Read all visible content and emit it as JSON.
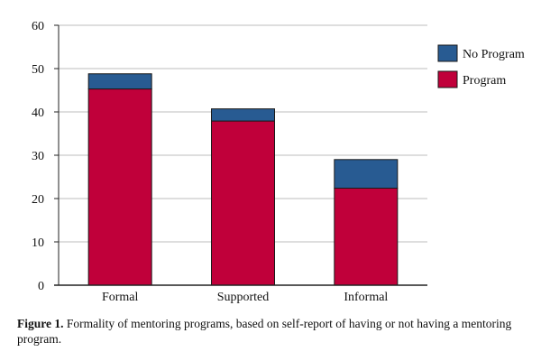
{
  "caption": {
    "figure_label": "Figure 1.",
    "text": "Formality of mentoring programs, based on self-report of having or not having a mentoring program."
  },
  "colors": {
    "program": "#c0003a",
    "no_program": "#285b92",
    "grid": "#bdbdbd",
    "axis": "#222222"
  },
  "chart_data": {
    "type": "bar",
    "stacked": true,
    "title": "",
    "xlabel": "",
    "ylabel": "",
    "categories": [
      "Formal",
      "Supported",
      "Informal"
    ],
    "series": [
      {
        "name": "Program",
        "values": [
          45.3,
          37.9,
          22.4
        ]
      },
      {
        "name": "No Program",
        "values": [
          3.5,
          2.8,
          6.6
        ]
      }
    ],
    "ylim": [
      0,
      60
    ],
    "yticks": [
      0,
      10,
      20,
      30,
      40,
      50,
      60
    ],
    "grid": true,
    "legend_position": "right",
    "legend_order": [
      "No Program",
      "Program"
    ]
  }
}
